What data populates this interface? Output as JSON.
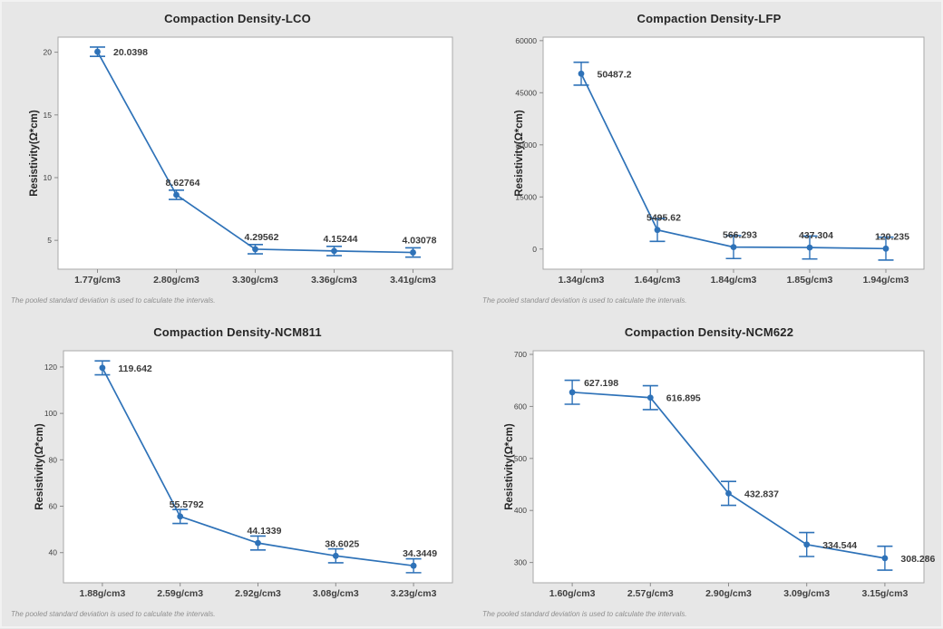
{
  "colors": {
    "background": "#e7e7e7",
    "plot_background": "#ffffff",
    "plot_border": "#a9a9a9",
    "tick_mark": "#8c8c8c",
    "series_blue": "#2e72b8",
    "title_text": "#262626",
    "tick_text": "#3f3f3f",
    "data_label_text": "#3a3a3a",
    "footnote_text": "#8f8f8f"
  },
  "footnote": "The pooled standard deviation is used to calculate the intervals.",
  "chart_data": [
    {
      "type": "line",
      "title": "Compaction Density-LCO",
      "ylabel": "Resistivity(Ω*cm)",
      "categories": [
        "1.77g/cm3",
        "2.80g/cm3",
        "3.30g/cm3",
        "3.36g/cm3",
        "3.41g/cm3"
      ],
      "values": [
        20.0398,
        8.62764,
        4.29562,
        4.15244,
        4.03078
      ],
      "value_labels": [
        "20.0398",
        "8.62764",
        "4.29562",
        "4.15244",
        "4.03078"
      ],
      "yticks": [
        5,
        10,
        15,
        20
      ],
      "ylim": [
        2.7,
        21.2
      ],
      "interval": 0.37,
      "label_pos": [
        "right",
        "above",
        "above",
        "above",
        "above"
      ],
      "grid": false,
      "legend": "none"
    },
    {
      "type": "line",
      "title": "Compaction Density-LFP",
      "ylabel": "Resistivity(Ω*cm)",
      "categories": [
        "1.34g/cm3",
        "1.64g/cm3",
        "1.84g/cm3",
        "1.85g/cm3",
        "1.94g/cm3"
      ],
      "values": [
        50487.2,
        5495.62,
        566.293,
        437.304,
        120.235
      ],
      "value_labels": [
        "50487.2",
        "5495.62",
        "566.293",
        "437.304",
        "120.235"
      ],
      "yticks": [
        0,
        15000,
        30000,
        45000,
        60000
      ],
      "ylim": [
        -5800,
        61000
      ],
      "interval": 3300,
      "label_pos": [
        "right",
        "above",
        "above",
        "above",
        "above"
      ],
      "grid": false,
      "legend": "none"
    },
    {
      "type": "line",
      "title": "Compaction Density-NCM811",
      "ylabel": "Resistivity(Ω*cm)",
      "categories": [
        "1.88g/cm3",
        "2.59g/cm3",
        "2.92g/cm3",
        "3.08g/cm3",
        "3.23g/cm3"
      ],
      "values": [
        119.642,
        55.5792,
        44.1339,
        38.6025,
        34.3449
      ],
      "value_labels": [
        "119.642",
        "55.5792",
        "44.1339",
        "38.6025",
        "34.3449"
      ],
      "yticks": [
        40,
        60,
        80,
        100,
        120
      ],
      "ylim": [
        27,
        127
      ],
      "interval": 3.0,
      "label_pos": [
        "right",
        "above",
        "above",
        "above",
        "above"
      ],
      "grid": false,
      "legend": "none"
    },
    {
      "type": "line",
      "title": "Compaction Density-NCM622",
      "ylabel": "Resistivity(Ω*cm)",
      "categories": [
        "1.60g/cm3",
        "2.57g/cm3",
        "2.90g/cm3",
        "3.09g/cm3",
        "3.15g/cm3"
      ],
      "values": [
        627.198,
        616.895,
        432.837,
        334.544,
        308.286
      ],
      "value_labels": [
        "627.198",
        "616.895",
        "432.837",
        "334.544",
        "308.286"
      ],
      "yticks": [
        300,
        400,
        500,
        600,
        700
      ],
      "ylim": [
        261,
        707
      ],
      "interval": 23,
      "label_pos": [
        "above-right",
        "right",
        "right",
        "right",
        "right"
      ],
      "grid": false,
      "legend": "none"
    }
  ]
}
